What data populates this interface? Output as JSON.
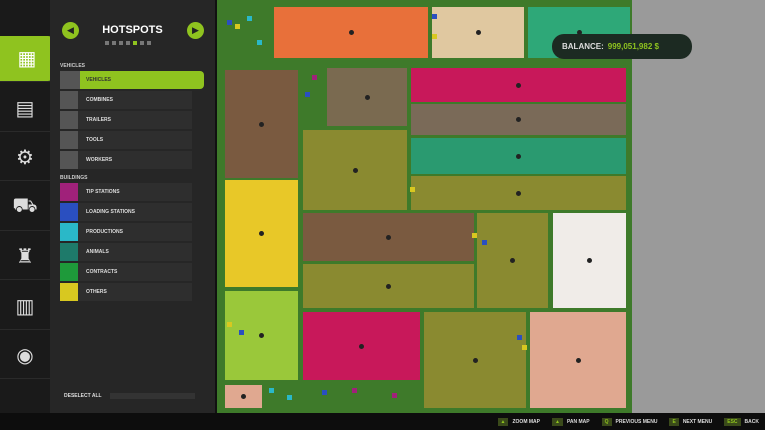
{
  "sidebar": {
    "tabs": [
      {
        "icon": "map-icon",
        "active": true
      },
      {
        "icon": "calendar-icon"
      },
      {
        "icon": "prices-icon"
      },
      {
        "icon": "vehicles-icon"
      },
      {
        "icon": "production-icon"
      },
      {
        "icon": "finances-icon"
      },
      {
        "icon": "settings-icon"
      }
    ]
  },
  "panel": {
    "title": "HOTSPOTS",
    "page_count": 7,
    "active_page": 4,
    "vehicles_header": "VEHICLES",
    "vehicles": [
      {
        "label": "VEHICLES",
        "selected": true,
        "color": "#555555"
      },
      {
        "label": "COMBINES",
        "color": "#555555"
      },
      {
        "label": "TRAILERS",
        "color": "#555555"
      },
      {
        "label": "TOOLS",
        "color": "#555555"
      },
      {
        "label": "WORKERS",
        "color": "#555555"
      }
    ],
    "buildings_header": "BUILDINGS",
    "buildings": [
      {
        "label": "TIP STATIONS",
        "color": "#a0217a"
      },
      {
        "label": "LOADING STATIONS",
        "color": "#2a4fc0"
      },
      {
        "label": "PRODUCTIONS",
        "color": "#2ab8c8"
      },
      {
        "label": "ANIMALS",
        "color": "#1e7a6a"
      },
      {
        "label": "CONTRACTS",
        "color": "#1e9a3a"
      },
      {
        "label": "OTHERS",
        "color": "#d8c820"
      }
    ],
    "deselect_all": "DESELECT ALL"
  },
  "balance": {
    "label": "BALANCE:",
    "value": "999,051,982 $",
    "color": "#8fc31f"
  },
  "bottom_hints": [
    {
      "key": "",
      "label": "ZOOM MAP"
    },
    {
      "key": "",
      "label": "PAN MAP"
    },
    {
      "key": "Q",
      "label": "PREVIOUS MENU"
    },
    {
      "key": "E",
      "label": "NEXT MENU"
    },
    {
      "key": "ESC",
      "label": "BACK"
    }
  ],
  "map": {
    "fields": [
      "#e8703a",
      "#e0c8a0",
      "#2ea878",
      "#7a5a40",
      "#7a6a50",
      "#c8185a",
      "#7a6a58",
      "#8a8a30",
      "#2a9a70",
      "#8a8a30",
      "#e8c828",
      "#7a5a40",
      "#8a8a30",
      "#f0ece8",
      "#8a8a30",
      "#9ac83a",
      "#c8185a",
      "#8a8a30",
      "#e0a890",
      "#e0a890"
    ]
  }
}
